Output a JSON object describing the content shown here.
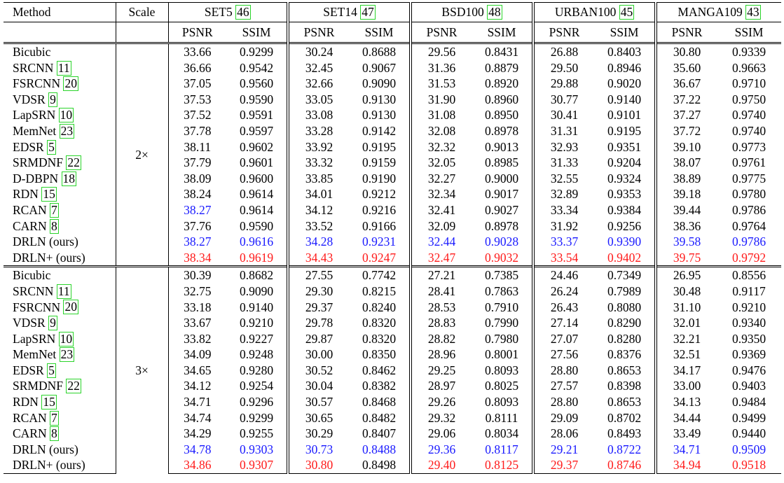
{
  "header": {
    "method": "Method",
    "scale": "Scale",
    "datasets": [
      {
        "name": "SET5 ",
        "cite": "46"
      },
      {
        "name": "SET14 ",
        "cite": "47"
      },
      {
        "name": "BSD100 ",
        "cite": "48"
      },
      {
        "name": "URBAN100 ",
        "cite": "45"
      },
      {
        "name": "MANGA109 ",
        "cite": "43"
      }
    ],
    "psnr": "PSNR",
    "ssim": "SSIM"
  },
  "groups": [
    {
      "scale": "2×",
      "rows": [
        {
          "method": "Bicubic",
          "cite": "",
          "values": [
            "33.66",
            "0.9299",
            "30.24",
            "0.8688",
            "29.56",
            "0.8431",
            "26.88",
            "0.8403",
            "30.80",
            "0.9339"
          ],
          "colors": [
            "",
            "",
            "",
            "",
            "",
            "",
            "",
            "",
            "",
            ""
          ]
        },
        {
          "method": "SRCNN ",
          "cite": "11",
          "values": [
            "36.66",
            "0.9542",
            "32.45",
            "0.9067",
            "31.36",
            "0.8879",
            "29.50",
            "0.8946",
            "35.60",
            "0.9663"
          ],
          "colors": [
            "",
            "",
            "",
            "",
            "",
            "",
            "",
            "",
            "",
            ""
          ]
        },
        {
          "method": "FSRCNN ",
          "cite": "20",
          "values": [
            "37.05",
            "0.9560",
            "32.66",
            "0.9090",
            "31.53",
            "0.8920",
            "29.88",
            "0.9020",
            "36.67",
            "0.9710"
          ],
          "colors": [
            "",
            "",
            "",
            "",
            "",
            "",
            "",
            "",
            "",
            ""
          ]
        },
        {
          "method": "VDSR ",
          "cite": "9",
          "values": [
            "37.53",
            "0.9590",
            "33.05",
            "0.9130",
            "31.90",
            "0.8960",
            "30.77",
            "0.9140",
            "37.22",
            "0.9750"
          ],
          "colors": [
            "",
            "",
            "",
            "",
            "",
            "",
            "",
            "",
            "",
            ""
          ]
        },
        {
          "method": "LapSRN ",
          "cite": "10",
          "values": [
            "37.52",
            "0.9591",
            "33.08",
            "0.9130",
            "31.08",
            "0.8950",
            "30.41",
            "0.9101",
            "37.27",
            "0.9740"
          ],
          "colors": [
            "",
            "",
            "",
            "",
            "",
            "",
            "",
            "",
            "",
            ""
          ]
        },
        {
          "method": "MemNet ",
          "cite": "23",
          "values": [
            "37.78",
            "0.9597",
            "33.28",
            "0.9142",
            "32.08",
            "0.8978",
            "31.31",
            "0.9195",
            "37.72",
            "0.9740"
          ],
          "colors": [
            "",
            "",
            "",
            "",
            "",
            "",
            "",
            "",
            "",
            ""
          ]
        },
        {
          "method": "EDSR ",
          "cite": "5",
          "values": [
            "38.11",
            "0.9602",
            "33.92",
            "0.9195",
            "32.32",
            "0.9013",
            "32.93",
            "0.9351",
            "39.10",
            "0.9773"
          ],
          "colors": [
            "",
            "",
            "",
            "",
            "",
            "",
            "",
            "",
            "",
            ""
          ]
        },
        {
          "method": "SRMDNF ",
          "cite": "22",
          "values": [
            "37.79",
            "0.9601",
            "33.32",
            "0.9159",
            "32.05",
            "0.8985",
            "31.33",
            "0.9204",
            "38.07",
            "0.9761"
          ],
          "colors": [
            "",
            "",
            "",
            "",
            "",
            "",
            "",
            "",
            "",
            ""
          ]
        },
        {
          "method": "D-DBPN ",
          "cite": "18",
          "values": [
            "38.09",
            "0.9600",
            "33.85",
            "0.9190",
            "32.27",
            "0.9000",
            "32.55",
            "0.9324",
            "38.89",
            "0.9775"
          ],
          "colors": [
            "",
            "",
            "",
            "",
            "",
            "",
            "",
            "",
            "",
            ""
          ]
        },
        {
          "method": "RDN ",
          "cite": "15",
          "values": [
            "38.24",
            "0.9614",
            "34.01",
            "0.9212",
            "32.34",
            "0.9017",
            "32.89",
            "0.9353",
            "39.18",
            "0.9780"
          ],
          "colors": [
            "",
            "",
            "",
            "",
            "",
            "",
            "",
            "",
            "",
            ""
          ]
        },
        {
          "method": "RCAN ",
          "cite": "7",
          "values": [
            "38.27",
            "0.9614",
            "34.12",
            "0.9216",
            "32.41",
            "0.9027",
            "33.34",
            "0.9384",
            "39.44",
            "0.9786"
          ],
          "colors": [
            "blue",
            "",
            "",
            "",
            "",
            "",
            "",
            "",
            "",
            ""
          ]
        },
        {
          "method": "CARN ",
          "cite": "8",
          "values": [
            "37.76",
            "0.9590",
            "33.52",
            "0.9166",
            "32.09",
            "0.8978",
            "31.92",
            "0.9256",
            "38.36",
            "0.9764"
          ],
          "colors": [
            "",
            "",
            "",
            "",
            "",
            "",
            "",
            "",
            "",
            ""
          ]
        },
        {
          "method": "DRLN (ours)",
          "cite": "",
          "values": [
            "38.27",
            "0.9616",
            "34.28",
            "0.9231",
            "32.44",
            "0.9028",
            "33.37",
            "0.9390",
            "39.58",
            "0.9786"
          ],
          "colors": [
            "blue",
            "blue",
            "blue",
            "blue",
            "blue",
            "blue",
            "blue",
            "blue",
            "blue",
            "blue"
          ]
        },
        {
          "method": "DRLN+ (ours)",
          "cite": "",
          "values": [
            "38.34",
            "0.9619",
            "34.43",
            "0.9247",
            "32.47",
            "0.9032",
            "33.54",
            "0.9402",
            "39.75",
            "0.9792"
          ],
          "colors": [
            "red",
            "red",
            "red",
            "red",
            "red",
            "red",
            "red",
            "red",
            "red",
            "red"
          ]
        }
      ]
    },
    {
      "scale": "3×",
      "rows": [
        {
          "method": "Bicubic",
          "cite": "",
          "values": [
            "30.39",
            "0.8682",
            "27.55",
            "0.7742",
            "27.21",
            "0.7385",
            "24.46",
            "0.7349",
            "26.95",
            "0.8556"
          ],
          "colors": [
            "",
            "",
            "",
            "",
            "",
            "",
            "",
            "",
            "",
            ""
          ]
        },
        {
          "method": "SRCNN ",
          "cite": "11",
          "values": [
            "32.75",
            "0.9090",
            "29.30",
            "0.8215",
            "28.41",
            "0.7863",
            "26.24",
            "0.7989",
            "30.48",
            "0.9117"
          ],
          "colors": [
            "",
            "",
            "",
            "",
            "",
            "",
            "",
            "",
            "",
            ""
          ]
        },
        {
          "method": "FSRCNN ",
          "cite": "20",
          "values": [
            "33.18",
            "0.9140",
            "29.37",
            "0.8240",
            "28.53",
            "0.7910",
            "26.43",
            "0.8080",
            "31.10",
            "0.9210"
          ],
          "colors": [
            "",
            "",
            "",
            "",
            "",
            "",
            "",
            "",
            "",
            ""
          ]
        },
        {
          "method": "VDSR ",
          "cite": "9",
          "values": [
            "33.67",
            "0.9210",
            "29.78",
            "0.8320",
            "28.83",
            "0.7990",
            "27.14",
            "0.8290",
            "32.01",
            "0.9340"
          ],
          "colors": [
            "",
            "",
            "",
            "",
            "",
            "",
            "",
            "",
            "",
            ""
          ]
        },
        {
          "method": "LapSRN ",
          "cite": "10",
          "values": [
            "33.82",
            "0.9227",
            "29.87",
            "0.8320",
            "28.82",
            "0.7980",
            "27.07",
            "0.8280",
            "32.21",
            "0.9350"
          ],
          "colors": [
            "",
            "",
            "",
            "",
            "",
            "",
            "",
            "",
            "",
            ""
          ]
        },
        {
          "method": "MemNet ",
          "cite": "23",
          "values": [
            "34.09",
            "0.9248",
            "30.00",
            "0.8350",
            "28.96",
            "0.8001",
            "27.56",
            "0.8376",
            "32.51",
            "0.9369"
          ],
          "colors": [
            "",
            "",
            "",
            "",
            "",
            "",
            "",
            "",
            "",
            ""
          ]
        },
        {
          "method": "EDSR ",
          "cite": "5",
          "values": [
            "34.65",
            "0.9280",
            "30.52",
            "0.8462",
            "29.25",
            "0.8093",
            "28.80",
            "0.8653",
            "34.17",
            "0.9476"
          ],
          "colors": [
            "",
            "",
            "",
            "",
            "",
            "",
            "",
            "",
            "",
            ""
          ]
        },
        {
          "method": "SRMDNF ",
          "cite": "22",
          "values": [
            "34.12",
            "0.9254",
            "30.04",
            "0.8382",
            "28.97",
            "0.8025",
            "27.57",
            "0.8398",
            "33.00",
            "0.9403"
          ],
          "colors": [
            "",
            "",
            "",
            "",
            "",
            "",
            "",
            "",
            "",
            ""
          ]
        },
        {
          "method": "RDN ",
          "cite": "15",
          "values": [
            "34.71",
            "0.9296",
            "30.57",
            "0.8468",
            "29.26",
            "0.8093",
            "28.80",
            "0.8653",
            "34.13",
            "0.9484"
          ],
          "colors": [
            "",
            "",
            "",
            "",
            "",
            "",
            "",
            "",
            "",
            ""
          ]
        },
        {
          "method": "RCAN ",
          "cite": "7",
          "values": [
            "34.74",
            "0.9299",
            "30.65",
            "0.8482",
            "29.32",
            "0.8111",
            "29.09",
            "0.8702",
            "34.44",
            "0.9499"
          ],
          "colors": [
            "",
            "",
            "",
            "",
            "",
            "",
            "",
            "",
            "",
            ""
          ]
        },
        {
          "method": "CARN ",
          "cite": "8",
          "values": [
            "34.29",
            "0.9255",
            "30.29",
            "0.8407",
            "29.06",
            "0.8034",
            "28.06",
            "0.8493",
            "33.49",
            "0.9440"
          ],
          "colors": [
            "",
            "",
            "",
            "",
            "",
            "",
            "",
            "",
            "",
            ""
          ]
        },
        {
          "method": "DRLN (ours)",
          "cite": "",
          "values": [
            "34.78",
            "0.9303",
            "30.73",
            "0.8488",
            "29.36",
            "0.8117",
            "29.21",
            "0.8722",
            "34.71",
            "0.9509"
          ],
          "colors": [
            "blue",
            "blue",
            "blue",
            "blue",
            "blue",
            "blue",
            "blue",
            "blue",
            "blue",
            "blue"
          ]
        },
        {
          "method": "DRLN+ (ours)",
          "cite": "",
          "values": [
            "34.86",
            "0.9307",
            "30.80",
            "0.8498",
            "29.40",
            "0.8125",
            "29.37",
            "0.8746",
            "34.94",
            "0.9518"
          ],
          "colors": [
            "red",
            "red",
            "red",
            "",
            "red",
            "red",
            "red",
            "red",
            "red",
            "red"
          ]
        }
      ]
    }
  ],
  "colors": {
    "red": "#ff1a1a",
    "blue": "#1a1aff",
    "cite_box": "#2bd42b"
  }
}
